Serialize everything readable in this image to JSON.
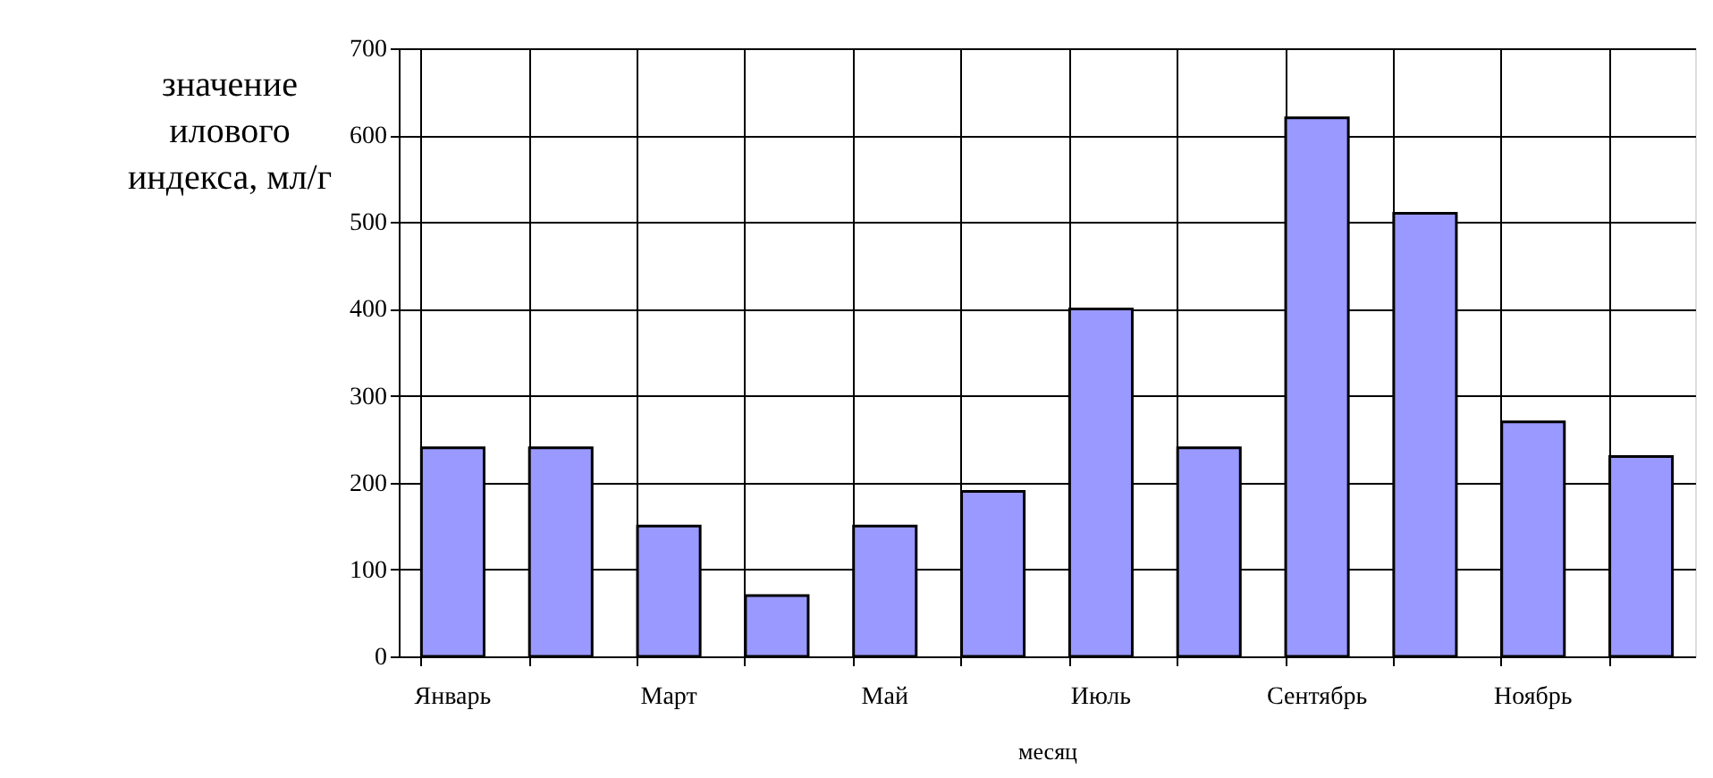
{
  "chart_data": {
    "type": "bar",
    "xlabel": "месяц",
    "ylabel": "значение\nилового\nиндекса, мл/г",
    "categories": [
      "Январь",
      null,
      "Март",
      null,
      "Май",
      null,
      "Июль",
      null,
      "Сентябрь",
      null,
      "Ноябрь",
      null
    ],
    "values": [
      240,
      240,
      150,
      70,
      150,
      190,
      400,
      240,
      620,
      510,
      270,
      230
    ],
    "color": "#9999ff",
    "ylim": [
      0,
      700
    ],
    "yticks": [
      0,
      100,
      200,
      300,
      400,
      500,
      600,
      700
    ],
    "grid": true
  }
}
